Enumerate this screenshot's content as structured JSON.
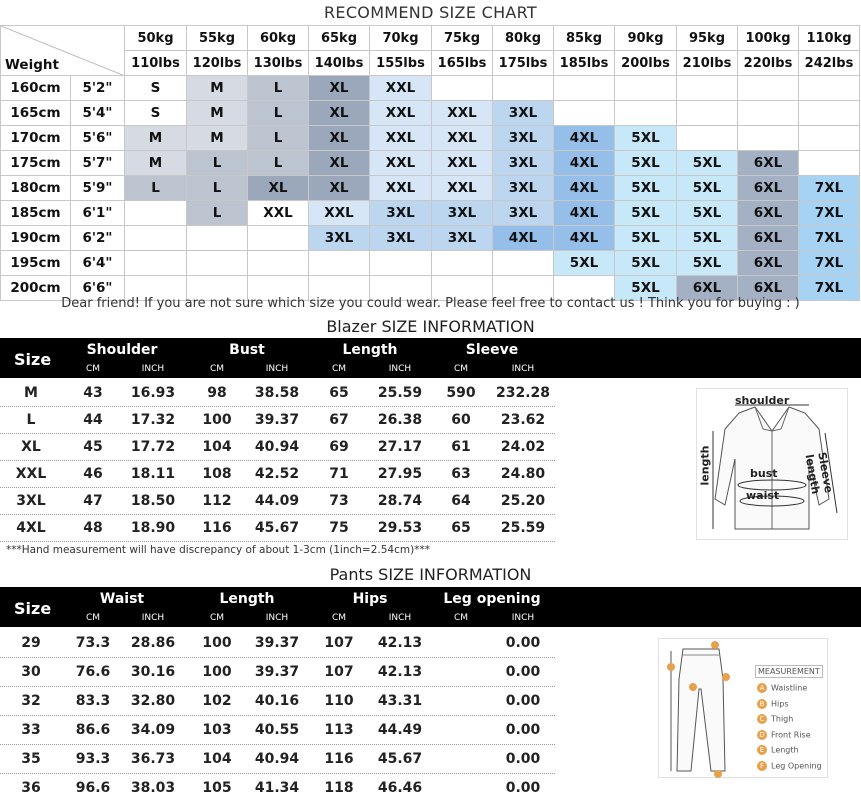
{
  "recommend": {
    "title": "RECOMMEND SIZE CHART",
    "weight_label": "Weight",
    "kg": [
      "50kg",
      "55kg",
      "60kg",
      "65kg",
      "70kg",
      "75kg",
      "80kg",
      "85kg",
      "90kg",
      "95kg",
      "100kg",
      "110kg"
    ],
    "lbs": [
      "110lbs",
      "120lbs",
      "130lbs",
      "140lbs",
      "155lbs",
      "165lbs",
      "175lbs",
      "185lbs",
      "200lbs",
      "210lbs",
      "220lbs",
      "242lbs"
    ],
    "rows": [
      {
        "cm": "160cm",
        "ft": "5'2\"",
        "cells": [
          "S",
          "M",
          "L",
          "XL",
          "XXL",
          "",
          "",
          "",
          "",
          "",
          "",
          ""
        ]
      },
      {
        "cm": "165cm",
        "ft": "5'4\"",
        "cells": [
          "S",
          "M",
          "L",
          "XL",
          "XXL",
          "XXL",
          "3XL",
          "",
          "",
          "",
          "",
          ""
        ]
      },
      {
        "cm": "170cm",
        "ft": "5'6\"",
        "cells": [
          "M",
          "M",
          "L",
          "XL",
          "XXL",
          "XXL",
          "3XL",
          "4XL",
          "5XL",
          "",
          "",
          ""
        ]
      },
      {
        "cm": "175cm",
        "ft": "5'7\"",
        "cells": [
          "M",
          "L",
          "L",
          "XL",
          "XXL",
          "XXL",
          "3XL",
          "4XL",
          "5XL",
          "5XL",
          "6XL",
          ""
        ]
      },
      {
        "cm": "180cm",
        "ft": "5'9\"",
        "cells": [
          "L",
          "L",
          "XL",
          "XL",
          "XXL",
          "XXL",
          "3XL",
          "4XL",
          "5XL",
          "5XL",
          "6XL",
          "7XL"
        ]
      },
      {
        "cm": "185cm",
        "ft": "6'1\"",
        "cells": [
          "",
          "L",
          "XXL",
          "XXL",
          "3XL",
          "3XL",
          "3XL",
          "4XL",
          "5XL",
          "5XL",
          "6XL",
          "7XL"
        ]
      },
      {
        "cm": "190cm",
        "ft": "6'2\"",
        "cells": [
          "",
          "",
          "",
          "3XL",
          "3XL",
          "3XL",
          "4XL",
          "4XL",
          "5XL",
          "5XL",
          "6XL",
          "7XL"
        ]
      },
      {
        "cm": "195cm",
        "ft": "6'4\"",
        "cells": [
          "",
          "",
          "",
          "",
          "",
          "",
          "",
          "5XL",
          "5XL",
          "5XL",
          "6XL",
          "7XL"
        ]
      },
      {
        "cm": "200cm",
        "ft": "6'6\"",
        "cells": [
          "",
          "",
          "",
          "",
          "",
          "",
          "",
          "",
          "5XL",
          "6XL",
          "6XL",
          "7XL"
        ]
      }
    ],
    "note": "Dear friend! If you are not sure which size you could wear. Please feel free to contact us ! Think you for buying  : )",
    "colors": {
      "S": "#ffffff",
      "M": "#d6dbe3",
      "L": "#bcc4d0",
      "XL": "#9ba8bb",
      "XXL": "#d6e6f6",
      "3XL": "#bcd6f0",
      "4XL": "#95bfe9",
      "5XL": "#c6e8f9",
      "6XL": "#a4b1c4",
      "7XL": "#a6d2f3"
    },
    "overrides": [
      {
        "row": 5,
        "col": 2,
        "color": "#ffffff"
      },
      {
        "row": 5,
        "col": 3,
        "color": "#d6e6f6"
      },
      {
        "row": 5,
        "col": 4,
        "color": "#bcd6f0"
      },
      {
        "row": 6,
        "col": 6,
        "color": "#95bfe9"
      },
      {
        "row": 8,
        "col": 9,
        "color": "#a4b1c4"
      }
    ]
  },
  "blazer": {
    "title": "Blazer SIZE INFORMATION",
    "size_label": "Size",
    "columns": [
      "Shoulder",
      "Bust",
      "Length",
      "Sleeve"
    ],
    "unit_cm": "CM",
    "unit_inch": "INCH",
    "rows": [
      [
        "M",
        "43",
        "16.93",
        "98",
        "38.58",
        "65",
        "25.59",
        "590",
        "232.28"
      ],
      [
        "L",
        "44",
        "17.32",
        "100",
        "39.37",
        "67",
        "26.38",
        "60",
        "23.62"
      ],
      [
        "XL",
        "45",
        "17.72",
        "104",
        "40.94",
        "69",
        "27.17",
        "61",
        "24.02"
      ],
      [
        "XXL",
        "46",
        "18.11",
        "108",
        "42.52",
        "71",
        "27.95",
        "63",
        "24.80"
      ],
      [
        "3XL",
        "47",
        "18.50",
        "112",
        "44.09",
        "73",
        "28.74",
        "64",
        "25.20"
      ],
      [
        "4XL",
        "48",
        "18.90",
        "116",
        "45.67",
        "75",
        "29.53",
        "65",
        "25.59"
      ]
    ],
    "note": "***Hand measurement will have discrepancy of about 1-3cm (1inch=2.54cm)***",
    "diagram": {
      "shoulder": "shoulder",
      "length": "length",
      "bust": "bust",
      "waist": "waist",
      "sleeve": "Sleeve length"
    }
  },
  "pants": {
    "title": "Pants SIZE INFORMATION",
    "size_label": "Size",
    "columns": [
      "Waist",
      "Length",
      "Hips",
      "Leg opening"
    ],
    "unit_cm": "CM",
    "unit_inch": "INCH",
    "rows": [
      [
        "29",
        "73.3",
        "28.86",
        "100",
        "39.37",
        "107",
        "42.13",
        "",
        "0.00"
      ],
      [
        "30",
        "76.6",
        "30.16",
        "100",
        "39.37",
        "107",
        "42.13",
        "",
        "0.00"
      ],
      [
        "32",
        "83.3",
        "32.80",
        "102",
        "40.16",
        "110",
        "43.31",
        "",
        "0.00"
      ],
      [
        "33",
        "86.6",
        "34.09",
        "103",
        "40.55",
        "113",
        "44.49",
        "",
        "0.00"
      ],
      [
        "35",
        "93.3",
        "36.73",
        "104",
        "40.94",
        "116",
        "45.67",
        "",
        "0.00"
      ],
      [
        "36",
        "96.6",
        "38.03",
        "105",
        "41.34",
        "118",
        "46.46",
        "",
        "0.00"
      ]
    ],
    "diagram": {
      "heading": "MEASUREMENT",
      "items": [
        {
          "key": "A",
          "label": "Waistline"
        },
        {
          "key": "B",
          "label": "Hips"
        },
        {
          "key": "C",
          "label": "Thigh"
        },
        {
          "key": "D",
          "label": "Front Rise"
        },
        {
          "key": "E",
          "label": "Length"
        },
        {
          "key": "F",
          "label": "Leg Opening"
        }
      ]
    }
  }
}
